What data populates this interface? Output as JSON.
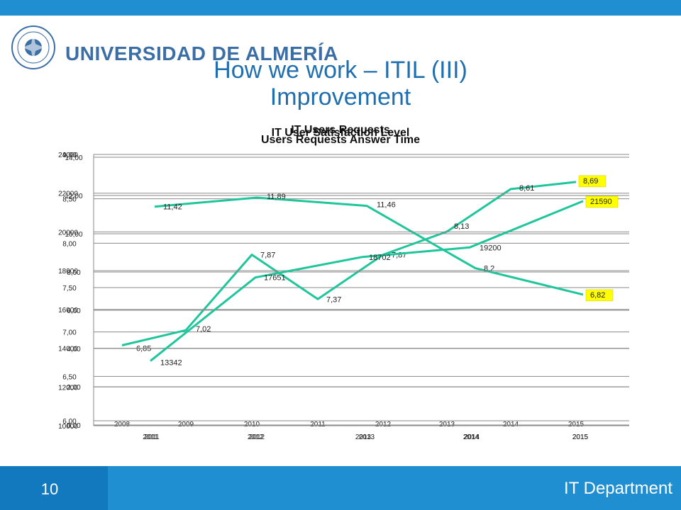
{
  "header": {
    "university": "UNIVERSIDAD DE ALMERÍA",
    "title_line1": "How we work – ITIL (III)",
    "title_line2": "Improvement",
    "accent_color": "#1f8fd2"
  },
  "footer": {
    "page_number": "10",
    "department": "IT Department"
  },
  "chart_data": [
    {
      "type": "line",
      "title": "Users Requests Answer Time",
      "x": [
        "2008",
        "2009",
        "2010",
        "2011",
        "2012",
        "2013",
        "2014",
        "2015"
      ],
      "series": [
        {
          "values": [
            6.85,
            7.02,
            7.87,
            7.37,
            7.87,
            8.13,
            8.61,
            8.69
          ],
          "labels": [
            "6,85",
            "7,02",
            "7,87",
            "7,37",
            "7,87",
            "8,13",
            "8,61",
            "8,69"
          ]
        }
      ],
      "highlight": [
        "8,69"
      ],
      "ylim": [
        6.0,
        9.0
      ],
      "yticks": [
        "6,00",
        "6,50",
        "7,00",
        "7,50",
        "8,00",
        "8,50",
        "9,00"
      ],
      "color": "#1fc59b"
    },
    {
      "type": "line",
      "title": "IT User Satisfaction Level",
      "x": [
        "2011",
        "2012",
        "2013",
        "2014",
        "2015"
      ],
      "series": [
        {
          "values": [
            11.42,
            11.89,
            11.46,
            8.2,
            6.82
          ],
          "labels": [
            "11,42",
            "11,89",
            "11,46",
            "8,2",
            "6,82"
          ]
        }
      ],
      "highlight": [
        "6,82"
      ],
      "ylim": [
        0,
        14
      ],
      "yticks": [
        "0,00",
        "2,00",
        "4,00",
        "6,00",
        "8,00",
        "10,00",
        "12,00",
        "14,00"
      ],
      "color": "#1fc59b"
    },
    {
      "type": "line",
      "title": "IT Users Requests",
      "x": [
        "2011",
        "2012",
        "2013",
        "2014",
        "2015"
      ],
      "series": [
        {
          "values": [
            13342,
            17651,
            18702,
            19200,
            21590
          ],
          "labels": [
            "13342",
            "17651",
            "18702",
            "19200",
            "21590"
          ]
        }
      ],
      "highlight": [
        "21590"
      ],
      "ylim": [
        10000,
        24000
      ],
      "yticks": [
        "10000",
        "12000",
        "14000",
        "16000",
        "18000",
        "20000",
        "22000",
        "24000"
      ],
      "color": "#1fc59b"
    }
  ]
}
